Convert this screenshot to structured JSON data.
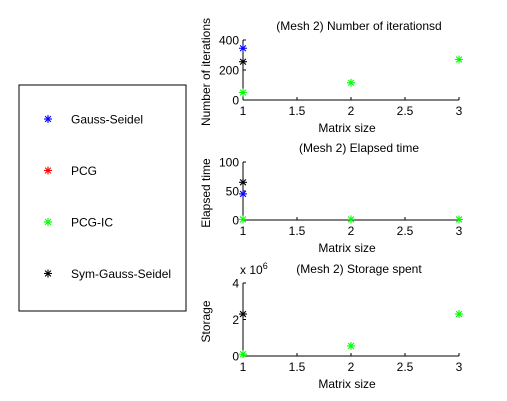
{
  "legend": {
    "entries": [
      {
        "name": "Gauss-Seidel",
        "color": "#0000ff"
      },
      {
        "name": "PCG",
        "color": "#ff0000"
      },
      {
        "name": "PCG-IC",
        "color": "#00ff00"
      },
      {
        "name": "Sym-Gauss-Seidel",
        "color": "#000000"
      }
    ],
    "marker": "*"
  },
  "chart_data": [
    {
      "type": "scatter",
      "title": "(Mesh 2) Number of iterationsd",
      "xlabel": "Matrix size",
      "ylabel": "Number of iterations",
      "xlim": [
        1,
        3
      ],
      "ylim": [
        0,
        400
      ],
      "xticks": [
        "1",
        "1.5",
        "2",
        "2.5",
        "3"
      ],
      "yticks": [
        "0",
        "200",
        "400"
      ],
      "exponent_label": "",
      "series": [
        {
          "name": "Gauss-Seidel",
          "color": "#0000ff",
          "x": [
            1
          ],
          "y": [
            345
          ]
        },
        {
          "name": "Sym-Gauss-Seidel",
          "color": "#000000",
          "x": [
            1
          ],
          "y": [
            255
          ]
        },
        {
          "name": "PCG-IC",
          "color": "#00ff00",
          "x": [
            1,
            2,
            3
          ],
          "y": [
            50,
            115,
            270
          ]
        }
      ]
    },
    {
      "type": "scatter",
      "title": "(Mesh 2) Elapsed time",
      "xlabel": "Matrix size",
      "ylabel": "Elapsed time",
      "xlim": [
        1,
        3
      ],
      "ylim": [
        0,
        100
      ],
      "xticks": [
        "1",
        "1.5",
        "2",
        "2.5",
        "3"
      ],
      "yticks": [
        "0",
        "50",
        "100"
      ],
      "exponent_label": "",
      "series": [
        {
          "name": "Sym-Gauss-Seidel",
          "color": "#000000",
          "x": [
            1
          ],
          "y": [
            65
          ]
        },
        {
          "name": "Gauss-Seidel",
          "color": "#0000ff",
          "x": [
            1
          ],
          "y": [
            45
          ]
        },
        {
          "name": "PCG-IC",
          "color": "#00ff00",
          "x": [
            1,
            2,
            3
          ],
          "y": [
            1,
            1,
            1
          ]
        }
      ]
    },
    {
      "type": "scatter",
      "title": "(Mesh 2) Storage spent",
      "xlabel": "Matrix size",
      "ylabel": "Storage",
      "xlim": [
        1,
        3
      ],
      "ylim": [
        0,
        4
      ],
      "xticks": [
        "1",
        "1.5",
        "2",
        "2.5",
        "3"
      ],
      "yticks": [
        "0",
        "2",
        "4"
      ],
      "exponent_label": "x 10",
      "exponent_power": "6",
      "series": [
        {
          "name": "Sym-Gauss-Seidel",
          "color": "#000000",
          "x": [
            1
          ],
          "y": [
            2.3
          ]
        },
        {
          "name": "PCG-IC",
          "color": "#00ff00",
          "x": [
            1,
            2,
            3
          ],
          "y": [
            0.1,
            0.55,
            2.3
          ]
        }
      ]
    }
  ]
}
